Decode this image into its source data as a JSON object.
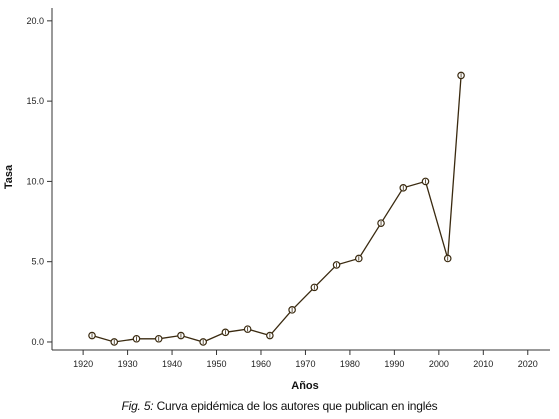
{
  "chart_data": {
    "type": "line",
    "title": "",
    "xlabel": "Años",
    "ylabel": "Tasa",
    "xlim": [
      1913,
      2025
    ],
    "ylim": [
      -0.5,
      20.8
    ],
    "x_ticks": [
      1920,
      1930,
      1940,
      1950,
      1960,
      1970,
      1980,
      1990,
      2000,
      2010,
      2020
    ],
    "y_ticks": [
      0,
      5,
      10,
      15,
      20
    ],
    "y_tick_labels": [
      "0.0",
      "5.0",
      "10.0",
      "15.0",
      "20.0"
    ],
    "x": [
      1922,
      1927,
      1932,
      1937,
      1942,
      1947,
      1952,
      1957,
      1962,
      1967,
      1972,
      1977,
      1982,
      1987,
      1992,
      1997,
      2002,
      2005
    ],
    "values": [
      0.4,
      0.0,
      0.2,
      0.2,
      0.4,
      0.0,
      0.6,
      0.8,
      0.4,
      2.0,
      3.4,
      4.8,
      5.2,
      7.4,
      9.6,
      10.0,
      5.2,
      16.6
    ],
    "grid": false,
    "line_color": "#3a2a10",
    "marker": "open-circle"
  },
  "caption": {
    "label": "Fig. 5:",
    "text": " Curva epidémica de los autores que publican en inglés"
  }
}
